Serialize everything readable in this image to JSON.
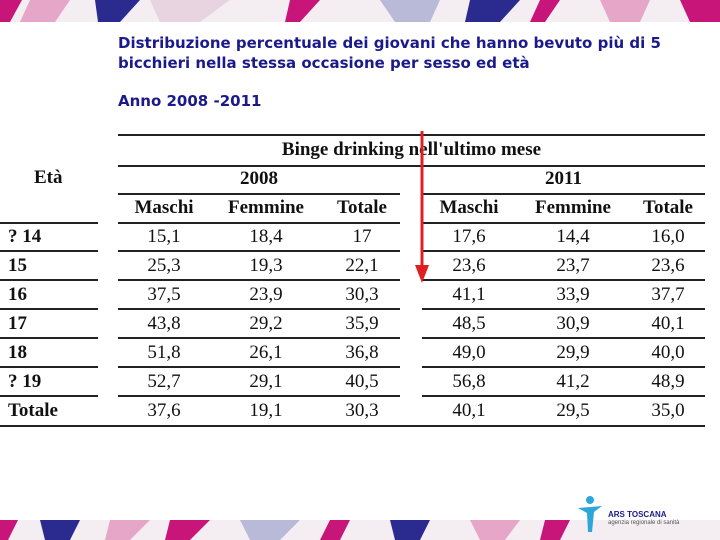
{
  "slide": {
    "title": "Distribuzione percentuale dei giovani che hanno bevuto più di 5 bicchieri nella stessa occasione per sesso ed età",
    "subtitle": "Anno 2008 -2011"
  },
  "table": {
    "caption": "Binge drinking nell'ultimo mese",
    "row_header": "Età",
    "years": [
      "2008",
      "2011"
    ],
    "columns": [
      "Maschi",
      "Femmine",
      "Totale",
      "Maschi",
      "Femmine",
      "Totale"
    ],
    "rows": [
      {
        "label": "? 14",
        "values": [
          "15,1",
          "18,4",
          "17",
          "17,6",
          "14,4",
          "16,0"
        ]
      },
      {
        "label": "15",
        "values": [
          "25,3",
          "19,3",
          "22,1",
          "23,6",
          "23,7",
          "23,6"
        ]
      },
      {
        "label": "16",
        "values": [
          "37,5",
          "23,9",
          "30,3",
          "41,1",
          "33,9",
          "37,7"
        ]
      },
      {
        "label": "17",
        "values": [
          "43,8",
          "29,2",
          "35,9",
          "48,5",
          "30,9",
          "40,1"
        ]
      },
      {
        "label": "18",
        "values": [
          "51,8",
          "26,1",
          "36,8",
          "49,0",
          "29,9",
          "40,0"
        ]
      },
      {
        "label": "? 19",
        "values": [
          "52,7",
          "29,1",
          "40,5",
          "56,8",
          "41,2",
          "48,9"
        ]
      },
      {
        "label": "Totale",
        "values": [
          "37,6",
          "19,1",
          "30,3",
          "40,1",
          "29,5",
          "35,0"
        ]
      }
    ]
  },
  "logo": {
    "name": "ARS TOSCANA",
    "tagline": "agenzia regionale di sanità"
  },
  "colors": {
    "title": "#1a1a8c",
    "arrow": "#e02020",
    "ribbon_magenta": "#c8157a",
    "ribbon_blue": "#2b2b8f"
  }
}
